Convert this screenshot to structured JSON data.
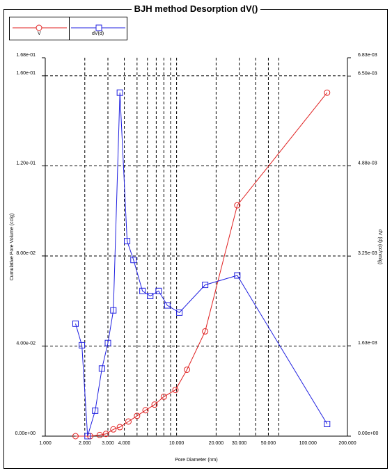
{
  "chart_data": {
    "type": "line",
    "title": "BJH method Desorption  dV()",
    "xlabel": "Pore Diameter (nm)",
    "ylabel_left": "Cumulative Pore Volume (cc/g)",
    "ylabel_right": "dV (d) (cc/nm/g)",
    "x_scale": "log",
    "xlim": [
      1.0,
      200.0
    ],
    "ylim_left": [
      0.0,
      0.168
    ],
    "ylim_right": [
      0.0,
      0.00683
    ],
    "x_ticks": [
      {
        "value": 1.0,
        "label": "1.000"
      },
      {
        "value": 2.0,
        "label": "2.000"
      },
      {
        "value": 3.0,
        "label": "3.000"
      },
      {
        "value": 4.0,
        "label": "4.000"
      },
      {
        "value": 10.0,
        "label": "10.000"
      },
      {
        "value": 20.0,
        "label": "20.000"
      },
      {
        "value": 30.0,
        "label": "30.000"
      },
      {
        "value": 50.0,
        "label": "50.000"
      },
      {
        "value": 100.0,
        "label": "100.000"
      },
      {
        "value": 200.0,
        "label": "200.000"
      }
    ],
    "x_grid": [
      2,
      3,
      4,
      5,
      6,
      7,
      8,
      9,
      10,
      20,
      30,
      40,
      50,
      60
    ],
    "y_left_ticks": [
      {
        "value": 0.0,
        "label": "0.00e+00"
      },
      {
        "value": 0.04,
        "label": "4.00e-02"
      },
      {
        "value": 0.08,
        "label": "8.00e-02"
      },
      {
        "value": 0.12,
        "label": "1.20e-01"
      },
      {
        "value": 0.16,
        "label": "1.60e-01"
      },
      {
        "value": 0.168,
        "label": "1.68e-01"
      }
    ],
    "y_right_ticks": [
      {
        "value": 0.0,
        "label": "0.00e+00"
      },
      {
        "value": 0.00163,
        "label": "1.63e-03"
      },
      {
        "value": 0.00325,
        "label": "3.25e-03"
      },
      {
        "value": 0.00488,
        "label": "4.88e-03"
      },
      {
        "value": 0.0065,
        "label": "6.50e-03"
      },
      {
        "value": 0.00683,
        "label": "6.83e-03"
      }
    ],
    "grid": true,
    "legend_position": "top-left",
    "series": [
      {
        "name": "V",
        "axis": "left",
        "color": "#e02020",
        "marker": "circle",
        "points": [
          [
            1.7,
            0.0
          ],
          [
            2.2,
            0.0
          ],
          [
            2.6,
            0.0005
          ],
          [
            2.9,
            0.001
          ],
          [
            3.3,
            0.003
          ],
          [
            3.7,
            0.004
          ],
          [
            4.3,
            0.0065
          ],
          [
            5.0,
            0.009
          ],
          [
            5.8,
            0.0115
          ],
          [
            6.8,
            0.014
          ],
          [
            8.0,
            0.0175
          ],
          [
            9.8,
            0.0205
          ],
          [
            12.0,
            0.0295
          ],
          [
            16.5,
            0.0465
          ],
          [
            29.0,
            0.1025
          ],
          [
            140.0,
            0.1525
          ]
        ]
      },
      {
        "name": "dV(d)",
        "axis": "right",
        "color": "#2020e0",
        "marker": "square",
        "points": [
          [
            1.7,
            0.00203
          ],
          [
            1.9,
            0.00164
          ],
          [
            2.1,
            0.0
          ],
          [
            2.4,
            0.00046
          ],
          [
            2.7,
            0.00122
          ],
          [
            3.0,
            0.00168
          ],
          [
            3.3,
            0.00227
          ],
          [
            3.7,
            0.0062
          ],
          [
            4.2,
            0.00352
          ],
          [
            4.7,
            0.00318
          ],
          [
            5.5,
            0.00262
          ],
          [
            6.3,
            0.00253
          ],
          [
            7.3,
            0.00262
          ],
          [
            8.5,
            0.00236
          ],
          [
            10.5,
            0.00223
          ],
          [
            16.5,
            0.00273
          ],
          [
            29.0,
            0.0029
          ],
          [
            140.0,
            0.00022
          ]
        ]
      }
    ]
  }
}
